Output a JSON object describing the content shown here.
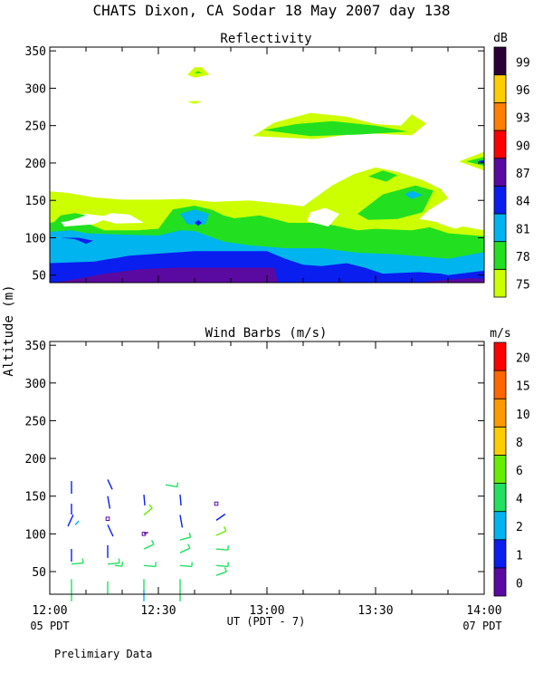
{
  "page": {
    "title": "CHATS Dixon, CA  Sodar  18 May 2007  day 138",
    "footer_note": "Prelimiary Data",
    "y_axis_label": "Altitude (m)",
    "x_axis_label": "UT  (PDT - 7)",
    "x_left_note": "05 PDT",
    "x_right_note": "07 PDT"
  },
  "chart_data": [
    {
      "type": "heatmap",
      "title": "Reflectivity",
      "colorbar_unit": "dB",
      "x_ticks": [
        "12:00",
        "12:30",
        "13:00",
        "13:30",
        "14:00"
      ],
      "y_ticks": [
        50,
        100,
        150,
        200,
        250,
        300,
        350
      ],
      "ylim": [
        40,
        355
      ],
      "xlim_minutes": [
        0,
        120
      ],
      "color_levels": [
        {
          "value": 75,
          "color": "#ccff00"
        },
        {
          "value": 78,
          "color": "#22e020"
        },
        {
          "value": 81,
          "color": "#00b4f0"
        },
        {
          "value": 84,
          "color": "#0a1ef0"
        },
        {
          "value": 87,
          "color": "#5a0aa0"
        },
        {
          "value": 90,
          "color": "#ff0000"
        },
        {
          "value": 93,
          "color": "#ff8000"
        },
        {
          "value": 96,
          "color": "#ffcc00"
        },
        {
          "value": 99,
          "color": "#2a0036"
        }
      ],
      "grid": false
    },
    {
      "type": "scatter",
      "title": "Wind Barbs (m/s)",
      "colorbar_unit": "m/s",
      "x_ticks": [
        "12:00",
        "12:30",
        "13:00",
        "13:30",
        "14:00"
      ],
      "y_ticks": [
        50,
        100,
        150,
        200,
        250,
        300,
        350
      ],
      "ylim": [
        20,
        355
      ],
      "xlim_minutes": [
        0,
        120
      ],
      "color_levels": [
        {
          "value": 0,
          "color": "#5a0aa0"
        },
        {
          "value": 1,
          "color": "#0a1ef0"
        },
        {
          "value": 2,
          "color": "#00b4f0"
        },
        {
          "value": 4,
          "color": "#22e060"
        },
        {
          "value": 6,
          "color": "#66ee00"
        },
        {
          "value": 8,
          "color": "#ffcc00"
        },
        {
          "value": 10,
          "color": "#ff9900"
        },
        {
          "value": 15,
          "color": "#ff6600"
        },
        {
          "value": 20,
          "color": "#ff0000"
        }
      ],
      "barbs_minutes": [
        5,
        10,
        15,
        20,
        25,
        30,
        35,
        40,
        45,
        50
      ],
      "barbs_heights": [
        20,
        40,
        60,
        80,
        100,
        120,
        140,
        160,
        180
      ],
      "grid": false
    }
  ]
}
